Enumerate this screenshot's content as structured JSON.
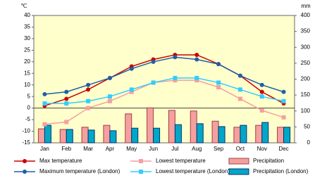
{
  "chart_data": {
    "type": "bar-line",
    "y_unit": "℃",
    "y2_unit": "mm",
    "categories": [
      "Jan",
      "Feb",
      "Mar",
      "Apr",
      "May",
      "Jun",
      "Jul",
      "Aug",
      "Sep",
      "Oct",
      "Nov",
      "Dec"
    ],
    "ylim": [
      -15,
      40
    ],
    "yticks": [
      -15,
      -10,
      -5,
      0,
      5,
      10,
      15,
      20,
      25,
      30,
      35,
      40
    ],
    "y2lim": [
      0,
      400
    ],
    "y2ticks": [
      0,
      50,
      100,
      150,
      200,
      250,
      300,
      350,
      400
    ],
    "grid": false,
    "background": "#ffffcc",
    "series": [
      {
        "name": "Max temperature",
        "type": "line",
        "marker": "circle",
        "color": "#cc0000",
        "values": [
          1,
          4,
          8,
          13,
          18,
          21,
          23,
          23,
          19,
          14,
          7,
          2
        ]
      },
      {
        "name": "Lowest temperature",
        "type": "line",
        "marker": "square",
        "color": "#f4a0a0",
        "values": [
          -7,
          -6,
          0,
          3,
          7,
          11,
          12,
          12,
          9,
          4,
          -1,
          -4
        ]
      },
      {
        "name": "Precipitation",
        "type": "bar",
        "axis": "y2",
        "color": "#f4a0a0",
        "edge": "#a04040",
        "values": [
          44,
          42,
          49,
          55,
          91,
          110,
          102,
          100,
          68,
          49,
          55,
          49
        ]
      },
      {
        "name": "Maximum temperature (London)",
        "type": "line",
        "marker": "circle",
        "color": "#1f5fa8",
        "values": [
          6,
          7,
          10,
          13,
          17,
          20,
          22,
          21,
          19,
          14,
          10,
          7
        ]
      },
      {
        "name": "Lowest temperature (London)",
        "type": "line",
        "marker": "square",
        "color": "#33ccff",
        "values": [
          2,
          2,
          3,
          5,
          8,
          11,
          13,
          13,
          11,
          8,
          5,
          3
        ]
      },
      {
        "name": "Precipitation (London)",
        "type": "bar",
        "axis": "y2",
        "color": "#00a8c8",
        "edge": "#003070",
        "values": [
          55,
          42,
          40,
          38,
          46,
          46,
          57,
          60,
          51,
          55,
          64,
          49
        ]
      }
    ]
  }
}
